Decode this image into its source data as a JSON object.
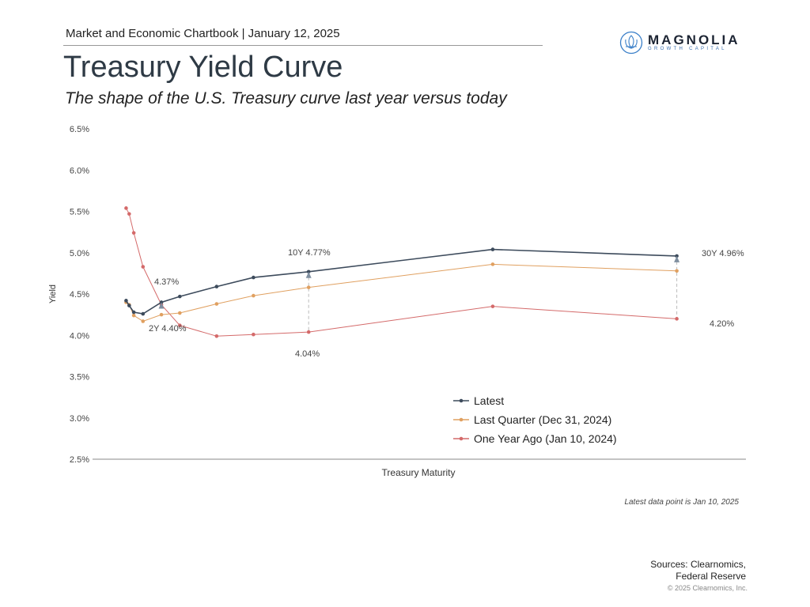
{
  "header": {
    "chartbook": "Market and Economic Chartbook | January 12, 2025",
    "title": "Treasury Yield Curve",
    "subtitle": "The shape of the U.S. Treasury curve last year versus today"
  },
  "logo": {
    "name": "MAGNOLIA",
    "tagline": "GROWTH CAPITAL"
  },
  "footer": {
    "note": "Latest data point is Jan 10, 2025",
    "sources_line1": "Sources: Clearnomics,",
    "sources_line2": "Federal Reserve",
    "copyright": "© 2025 Clearnomics, Inc."
  },
  "chart_data": {
    "type": "line",
    "title": "Treasury Yield Curve",
    "xlabel": "Treasury Maturity",
    "ylabel": "Yield",
    "ylim": [
      2.5,
      6.5
    ],
    "yticks": [
      "2.5%",
      "3.0%",
      "3.5%",
      "4.0%",
      "4.5%",
      "5.0%",
      "5.5%",
      "6.0%",
      "6.5%"
    ],
    "x_years": [
      0.083,
      0.25,
      0.5,
      1,
      2,
      3,
      5,
      7,
      10,
      20,
      30
    ],
    "series": [
      {
        "name": "Latest",
        "color": "#3d4b5c",
        "values": [
          4.42,
          4.36,
          4.28,
          4.26,
          4.4,
          4.47,
          4.59,
          4.7,
          4.77,
          5.04,
          4.96
        ]
      },
      {
        "name": "Last Quarter (Dec 31, 2024)",
        "color": "#e0a060",
        "values": [
          4.4,
          4.37,
          4.24,
          4.17,
          4.25,
          4.27,
          4.38,
          4.48,
          4.58,
          4.86,
          4.78
        ]
      },
      {
        "name": "One Year Ago (Jan 10, 2024)",
        "color": "#d46a6a",
        "values": [
          5.54,
          5.47,
          5.24,
          4.83,
          4.37,
          4.12,
          3.99,
          4.01,
          4.04,
          4.35,
          4.2
        ]
      }
    ],
    "annotations": [
      "4.37%",
      "2Y 4.40%",
      "10Y 4.77%",
      "4.04%",
      "30Y 4.96%",
      "4.20%"
    ],
    "legend_placement": "bottom-center"
  }
}
